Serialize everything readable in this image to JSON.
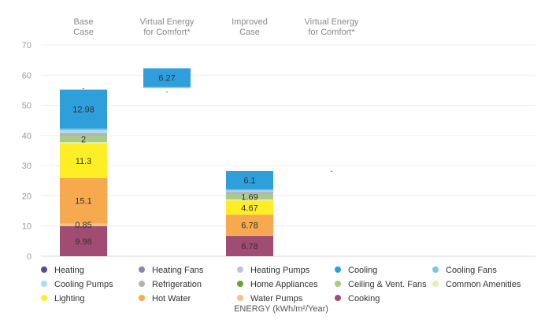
{
  "chart_data": {
    "type": "bar",
    "stacked": true,
    "title": "",
    "xlabel": "ENERGY (kWh/m²/Year)",
    "ylabel": "",
    "ylim": [
      0,
      70
    ],
    "yticks": [
      0,
      10,
      20,
      30,
      40,
      50,
      60,
      70
    ],
    "grid": true,
    "legend_position": "bottom",
    "categories": [
      {
        "line1": "Base",
        "line2": "Case"
      },
      {
        "line1": "Virtual Energy",
        "line2": "for Comfort*"
      },
      {
        "line1": "Improved",
        "line2": "Case"
      },
      {
        "line1": "Virtual Energy",
        "line2": "for Comfort*"
      }
    ],
    "series": [
      {
        "name": "Cooking",
        "color": "#a14c72",
        "values": [
          9.98,
          0,
          6.78,
          0
        ]
      },
      {
        "name": "Water Pumps",
        "color": "#f8c189",
        "values": [
          0.85,
          0,
          0.2,
          0
        ]
      },
      {
        "name": "Hot Water",
        "color": "#f7a94f",
        "values": [
          15.1,
          0,
          6.78,
          0
        ]
      },
      {
        "name": "Lighting",
        "color": "#ffee26",
        "values": [
          11.3,
          0,
          4.67,
          0
        ]
      },
      {
        "name": "Common Amenities",
        "color": "#e3efb6",
        "values": [
          0.6,
          0,
          0.4,
          0
        ]
      },
      {
        "name": "Ceiling & Vent. Fans",
        "color": "#a7cc86",
        "values": [
          2,
          0,
          1.69,
          0
        ]
      },
      {
        "name": "Home Appliances",
        "color": "#6f9e3a",
        "values": [
          0,
          0,
          0,
          0
        ]
      },
      {
        "name": "Refrigeration",
        "color": "#b3b3b3",
        "values": [
          1.0,
          0,
          0.8,
          0
        ]
      },
      {
        "name": "Cooling Pumps",
        "color": "#a8dcef",
        "values": [
          0.9,
          0.4,
          0.4,
          0
        ]
      },
      {
        "name": "Cooling Fans",
        "color": "#7ec3e8",
        "values": [
          0.5,
          0,
          0.4,
          0
        ]
      },
      {
        "name": "Cooling",
        "color": "#2f9fdc",
        "values": [
          12.98,
          6.27,
          6.1,
          0
        ]
      },
      {
        "name": "Heating Pumps",
        "color": "#c5c0dc",
        "values": [
          0,
          0,
          0,
          0
        ]
      },
      {
        "name": "Heating Fans",
        "color": "#8f82b9",
        "values": [
          0,
          0,
          0,
          0
        ]
      },
      {
        "name": "Heating",
        "color": "#5b4c97",
        "values": [
          0,
          0,
          0,
          0
        ]
      }
    ],
    "bar_base": [
      0,
      55.61,
      0,
      0
    ],
    "data_labels": [
      {
        "bar": 0,
        "series": "Cooking",
        "text": "9.98"
      },
      {
        "bar": 0,
        "series": "Water Pumps",
        "text": "0.85"
      },
      {
        "bar": 0,
        "series": "Hot Water",
        "text": "15.1"
      },
      {
        "bar": 0,
        "series": "Lighting",
        "text": "11.3"
      },
      {
        "bar": 0,
        "series": "Ceiling & Vent. Fans",
        "text": "2"
      },
      {
        "bar": 0,
        "series": "Cooling",
        "text": "12.98"
      },
      {
        "bar": 1,
        "series": "Cooling",
        "text": "6.27"
      },
      {
        "bar": 2,
        "series": "Cooking",
        "text": "6.78"
      },
      {
        "bar": 2,
        "series": "Hot Water",
        "text": "6.78"
      },
      {
        "bar": 2,
        "series": "Lighting",
        "text": "4.67"
      },
      {
        "bar": 2,
        "series": "Ceiling & Vent. Fans",
        "text": "1.69"
      },
      {
        "bar": 2,
        "series": "Cooling",
        "text": "6.1"
      }
    ],
    "tick_markers": [
      {
        "bar": 0,
        "value": 55.61,
        "text": "-"
      },
      {
        "bar": 1,
        "value": 54.4,
        "text": "-"
      },
      {
        "bar": 3,
        "value": 28.2,
        "text": "-"
      }
    ],
    "legend": [
      {
        "name": "Heating",
        "color": "#5b4c97"
      },
      {
        "name": "Heating Fans",
        "color": "#8f82b9"
      },
      {
        "name": "Heating Pumps",
        "color": "#c5c0dc"
      },
      {
        "name": "Cooling",
        "color": "#2f9fdc"
      },
      {
        "name": "Cooling Fans",
        "color": "#7ec3e8"
      },
      {
        "name": "Cooling Pumps",
        "color": "#a8dcef"
      },
      {
        "name": "Refrigeration",
        "color": "#b3b3b3"
      },
      {
        "name": "Home Appliances",
        "color": "#6f9e3a"
      },
      {
        "name": "Ceiling & Vent. Fans",
        "color": "#a7cc86"
      },
      {
        "name": "Common Amenities",
        "color": "#e3efb6"
      },
      {
        "name": "Lighting",
        "color": "#ffee26"
      },
      {
        "name": "Hot Water",
        "color": "#f7a94f"
      },
      {
        "name": "Water Pumps",
        "color": "#f8c189"
      },
      {
        "name": "Cooking",
        "color": "#a14c72"
      }
    ]
  }
}
